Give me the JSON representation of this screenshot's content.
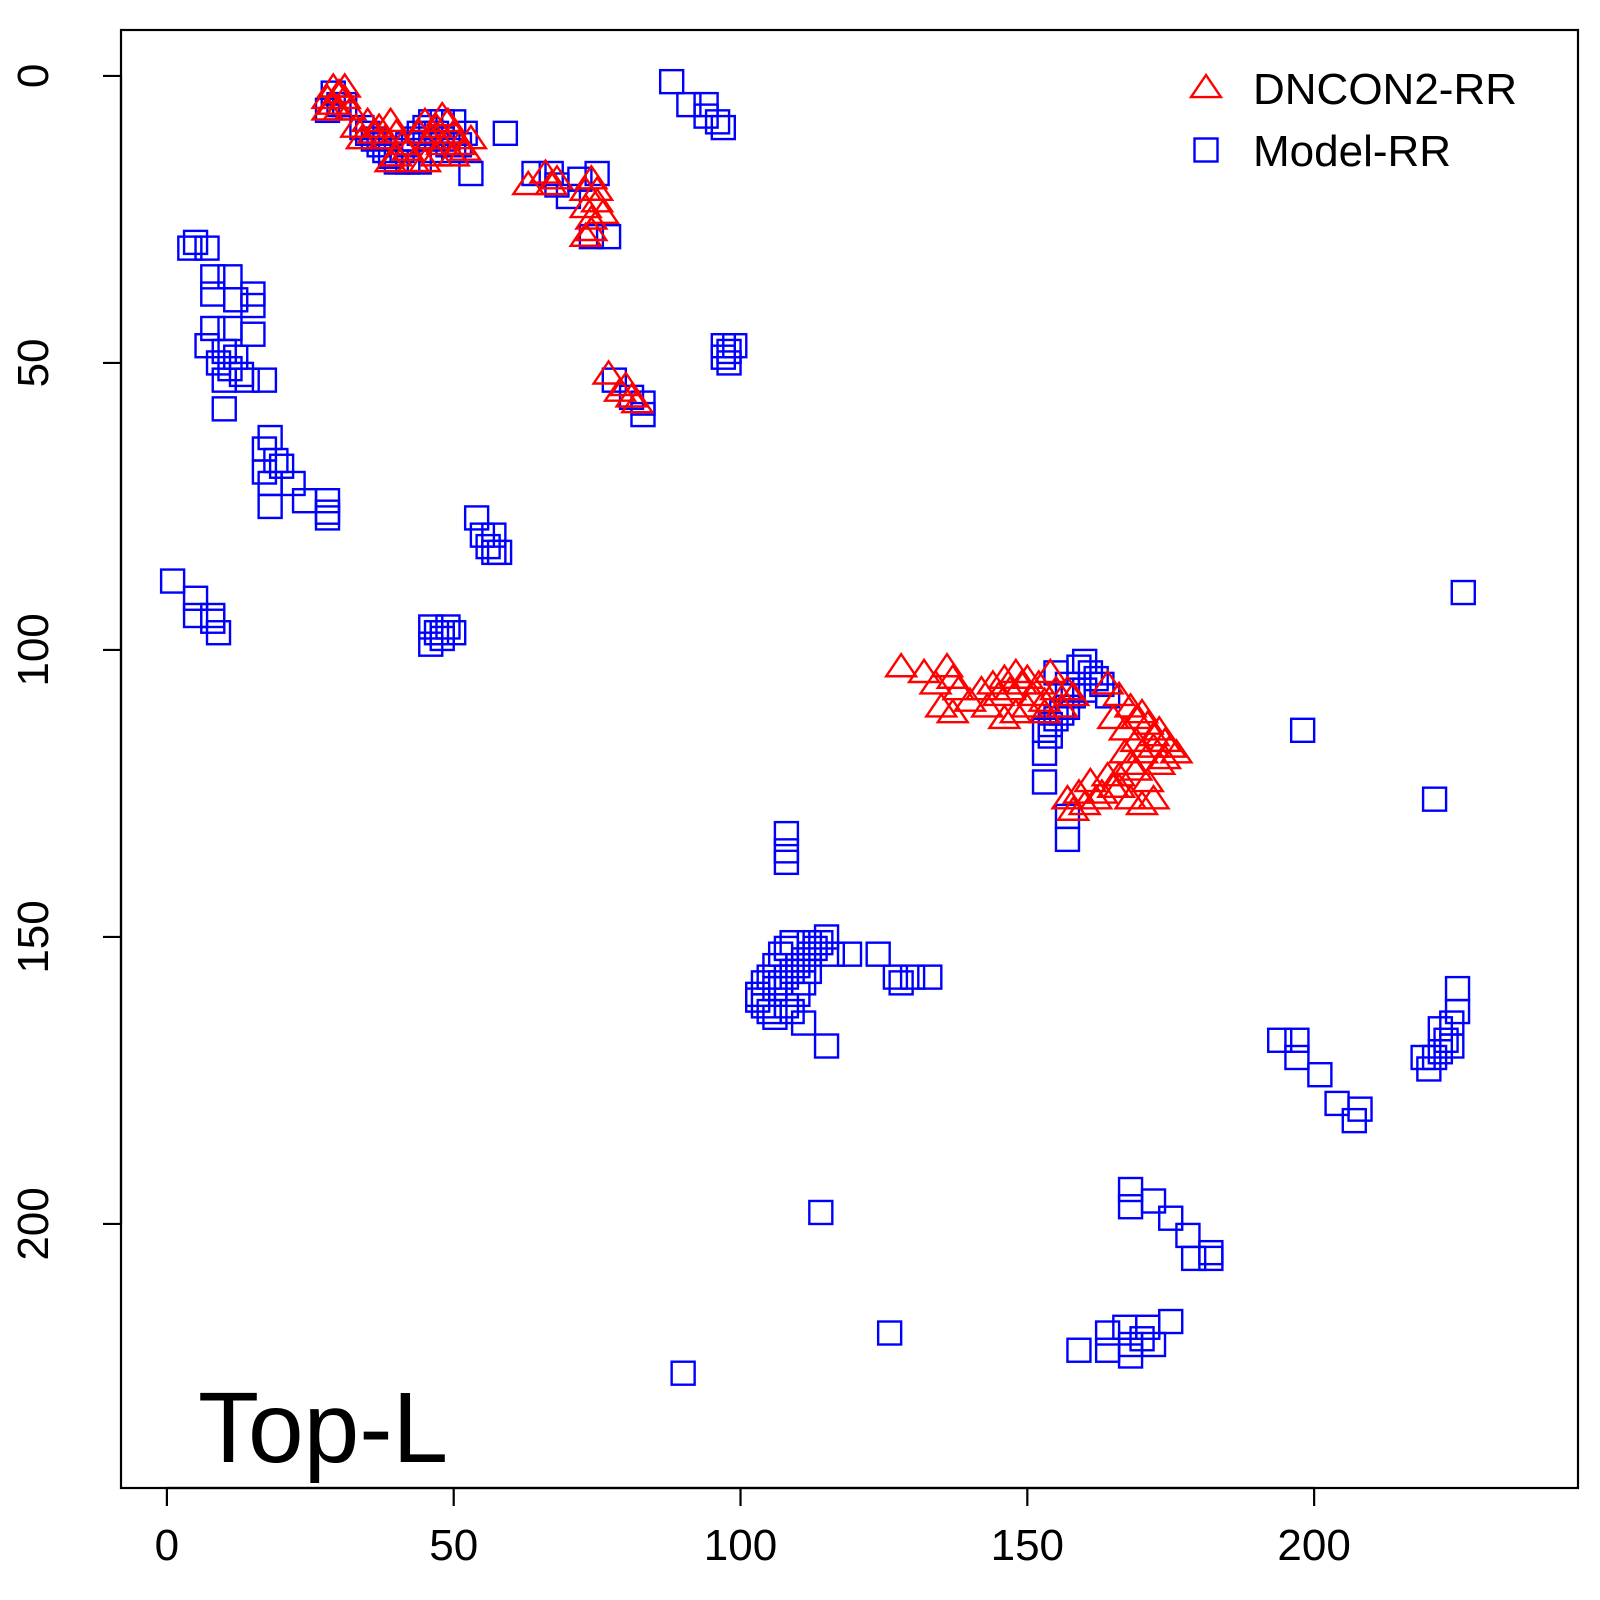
{
  "chart_data": {
    "type": "scatter",
    "title": "",
    "xlabel": "",
    "ylabel": "",
    "xlim": [
      -8,
      246
    ],
    "ylim": [
      246,
      -8
    ],
    "y_reversed": true,
    "grid": false,
    "legend_position": "top-right",
    "annotation": "Top-L",
    "x_ticks": [
      0,
      50,
      100,
      150,
      200
    ],
    "y_ticks": [
      0,
      50,
      100,
      150,
      200
    ],
    "series": [
      {
        "name": "DNCON2-RR",
        "marker": "triangle",
        "color": "#ff0000",
        "points": [
          [
            28,
            4
          ],
          [
            29,
            2
          ],
          [
            30,
            3
          ],
          [
            29,
            5
          ],
          [
            31,
            4
          ],
          [
            28,
            6
          ],
          [
            30,
            6
          ],
          [
            32,
            6
          ],
          [
            31,
            2
          ],
          [
            33,
            9
          ],
          [
            34,
            11
          ],
          [
            35,
            8
          ],
          [
            36,
            10
          ],
          [
            37,
            9
          ],
          [
            38,
            11
          ],
          [
            39,
            8
          ],
          [
            40,
            10
          ],
          [
            41,
            12
          ],
          [
            40,
            14
          ],
          [
            39,
            15
          ],
          [
            42,
            13
          ],
          [
            43,
            15
          ],
          [
            44,
            10
          ],
          [
            45,
            8
          ],
          [
            46,
            11
          ],
          [
            47,
            9
          ],
          [
            48,
            12
          ],
          [
            49,
            8
          ],
          [
            50,
            10
          ],
          [
            51,
            12
          ],
          [
            52,
            13
          ],
          [
            47,
            14
          ],
          [
            45,
            15
          ],
          [
            53,
            11
          ],
          [
            50,
            14
          ],
          [
            48,
            7
          ],
          [
            63,
            19
          ],
          [
            66,
            17
          ],
          [
            67,
            19
          ],
          [
            68,
            18
          ],
          [
            73,
            20
          ],
          [
            74,
            18
          ],
          [
            75,
            20
          ],
          [
            73,
            23
          ],
          [
            74,
            25
          ],
          [
            75,
            22
          ],
          [
            76,
            24
          ],
          [
            74,
            27
          ],
          [
            73,
            28
          ],
          [
            77,
            52
          ],
          [
            79,
            55
          ],
          [
            80,
            54
          ],
          [
            81,
            56
          ],
          [
            82,
            57
          ],
          [
            128,
            103
          ],
          [
            132,
            104
          ],
          [
            134,
            106
          ],
          [
            136,
            103
          ],
          [
            137,
            105
          ],
          [
            138,
            107
          ],
          [
            135,
            110
          ],
          [
            137,
            111
          ],
          [
            140,
            109
          ],
          [
            142,
            107
          ],
          [
            143,
            110
          ],
          [
            144,
            106
          ],
          [
            146,
            105
          ],
          [
            145,
            108
          ],
          [
            147,
            107
          ],
          [
            148,
            104
          ],
          [
            149,
            106
          ],
          [
            150,
            105
          ],
          [
            151,
            108
          ],
          [
            152,
            106
          ],
          [
            153,
            109
          ],
          [
            150,
            110
          ],
          [
            148,
            111
          ],
          [
            146,
            112
          ],
          [
            155,
            107
          ],
          [
            154,
            104
          ],
          [
            157,
            107
          ],
          [
            156,
            110
          ],
          [
            158,
            108
          ],
          [
            153,
            111
          ],
          [
            164,
            106
          ],
          [
            166,
            108
          ],
          [
            165,
            112
          ],
          [
            167,
            114
          ],
          [
            168,
            110
          ],
          [
            169,
            112
          ],
          [
            170,
            111
          ],
          [
            171,
            113
          ],
          [
            172,
            115
          ],
          [
            173,
            114
          ],
          [
            174,
            116
          ],
          [
            175,
            117
          ],
          [
            176,
            118
          ],
          [
            169,
            116
          ],
          [
            167,
            118
          ],
          [
            168,
            120
          ],
          [
            166,
            122
          ],
          [
            165,
            124
          ],
          [
            163,
            125
          ],
          [
            162,
            126
          ],
          [
            160,
            127
          ],
          [
            158,
            128
          ],
          [
            157,
            126
          ],
          [
            159,
            125
          ],
          [
            161,
            123
          ],
          [
            164,
            122
          ],
          [
            166,
            124
          ],
          [
            168,
            126
          ],
          [
            170,
            127
          ],
          [
            172,
            126
          ],
          [
            171,
            123
          ],
          [
            173,
            120
          ],
          [
            170,
            118
          ],
          [
            172,
            117
          ],
          [
            174,
            119
          ],
          [
            169,
            121
          ]
        ]
      },
      {
        "name": "Model-RR",
        "marker": "square",
        "color": "#0000ff",
        "points": [
          [
            29,
            3
          ],
          [
            30,
            5
          ],
          [
            28,
            6
          ],
          [
            31,
            5
          ],
          [
            34,
            9
          ],
          [
            35,
            10
          ],
          [
            36,
            11
          ],
          [
            37,
            12
          ],
          [
            38,
            13
          ],
          [
            39,
            14
          ],
          [
            40,
            15
          ],
          [
            41,
            13
          ],
          [
            42,
            12
          ],
          [
            43,
            11
          ],
          [
            44,
            10
          ],
          [
            45,
            9
          ],
          [
            46,
            8
          ],
          [
            47,
            10
          ],
          [
            48,
            11
          ],
          [
            49,
            12
          ],
          [
            50,
            13
          ],
          [
            51,
            12
          ],
          [
            52,
            10
          ],
          [
            53,
            17
          ],
          [
            46,
            13
          ],
          [
            44,
            15
          ],
          [
            42,
            15
          ],
          [
            48,
            8
          ],
          [
            50,
            8
          ],
          [
            59,
            10
          ],
          [
            88,
            1
          ],
          [
            91,
            5
          ],
          [
            94,
            5
          ],
          [
            94,
            7
          ],
          [
            96,
            8
          ],
          [
            97,
            9
          ],
          [
            64,
            17
          ],
          [
            67,
            17
          ],
          [
            68,
            19
          ],
          [
            70,
            21
          ],
          [
            72,
            18
          ],
          [
            75,
            17
          ],
          [
            74,
            28
          ],
          [
            77,
            28
          ],
          [
            5,
            29
          ],
          [
            7,
            30
          ],
          [
            4,
            30
          ],
          [
            8,
            35
          ],
          [
            11,
            35
          ],
          [
            8,
            38
          ],
          [
            12,
            39
          ],
          [
            15,
            38
          ],
          [
            15,
            40
          ],
          [
            8,
            44
          ],
          [
            11,
            44
          ],
          [
            15,
            45
          ],
          [
            7,
            47
          ],
          [
            10,
            48
          ],
          [
            12,
            49
          ],
          [
            9,
            50
          ],
          [
            11,
            51
          ],
          [
            13,
            52
          ],
          [
            14,
            53
          ],
          [
            10,
            53
          ],
          [
            17,
            53
          ],
          [
            10,
            58
          ],
          [
            18,
            63
          ],
          [
            17,
            65
          ],
          [
            19,
            67
          ],
          [
            17,
            69
          ],
          [
            20,
            68
          ],
          [
            18,
            71
          ],
          [
            22,
            71
          ],
          [
            18,
            75
          ],
          [
            24,
            74
          ],
          [
            28,
            74
          ],
          [
            28,
            76
          ],
          [
            28,
            77
          ],
          [
            54,
            77
          ],
          [
            55,
            80
          ],
          [
            57,
            80
          ],
          [
            56,
            82
          ],
          [
            57,
            83
          ],
          [
            58,
            83
          ],
          [
            1,
            88
          ],
          [
            5,
            91
          ],
          [
            5,
            94
          ],
          [
            8,
            94
          ],
          [
            8,
            95
          ],
          [
            9,
            97
          ],
          [
            46,
            96
          ],
          [
            47,
            97
          ],
          [
            48,
            98
          ],
          [
            46,
            99
          ],
          [
            48,
            97
          ],
          [
            49,
            96
          ],
          [
            50,
            97
          ],
          [
            97,
            47
          ],
          [
            98,
            48
          ],
          [
            99,
            47
          ],
          [
            97,
            49
          ],
          [
            98,
            50
          ],
          [
            78,
            53
          ],
          [
            81,
            56
          ],
          [
            83,
            57
          ],
          [
            83,
            59
          ],
          [
            155,
            104
          ],
          [
            157,
            106
          ],
          [
            159,
            103
          ],
          [
            160,
            102
          ],
          [
            161,
            104
          ],
          [
            162,
            105
          ],
          [
            163,
            106
          ],
          [
            160,
            107
          ],
          [
            158,
            108
          ],
          [
            157,
            110
          ],
          [
            156,
            111
          ],
          [
            155,
            112
          ],
          [
            154,
            113
          ],
          [
            153,
            114
          ],
          [
            154,
            115
          ],
          [
            153,
            118
          ],
          [
            153,
            123
          ],
          [
            157,
            129
          ],
          [
            157,
            133
          ],
          [
            164,
            108
          ],
          [
            108,
            132
          ],
          [
            108,
            135
          ],
          [
            108,
            137
          ],
          [
            103,
            160
          ],
          [
            104,
            162
          ],
          [
            105,
            163
          ],
          [
            106,
            164
          ],
          [
            107,
            158
          ],
          [
            108,
            157
          ],
          [
            109,
            156
          ],
          [
            110,
            155
          ],
          [
            111,
            154
          ],
          [
            112,
            153
          ],
          [
            113,
            152
          ],
          [
            114,
            151
          ],
          [
            115,
            150
          ],
          [
            116,
            153
          ],
          [
            119,
            153
          ],
          [
            124,
            153
          ],
          [
            127,
            157
          ],
          [
            128,
            158
          ],
          [
            130,
            157
          ],
          [
            133,
            157
          ],
          [
            106,
            155
          ],
          [
            107,
            153
          ],
          [
            108,
            152
          ],
          [
            109,
            151
          ],
          [
            105,
            157
          ],
          [
            106,
            159
          ],
          [
            104,
            158
          ],
          [
            103,
            161
          ],
          [
            111,
            165
          ],
          [
            115,
            169
          ],
          [
            110,
            160
          ],
          [
            111,
            158
          ],
          [
            112,
            156
          ],
          [
            108,
            162
          ],
          [
            109,
            163
          ],
          [
            112,
            151
          ],
          [
            198,
            114
          ],
          [
            221,
            126
          ],
          [
            226,
            90
          ],
          [
            194,
            168
          ],
          [
            197,
            168
          ],
          [
            197,
            171
          ],
          [
            201,
            174
          ],
          [
            204,
            179
          ],
          [
            207,
            182
          ],
          [
            208,
            180
          ],
          [
            219,
            171
          ],
          [
            220,
            173
          ],
          [
            221,
            171
          ],
          [
            222,
            170
          ],
          [
            222,
            166
          ],
          [
            223,
            168
          ],
          [
            224,
            169
          ],
          [
            224,
            165
          ],
          [
            225,
            163
          ],
          [
            225,
            159
          ],
          [
            114,
            198
          ],
          [
            90,
            226
          ],
          [
            126,
            219
          ],
          [
            168,
            194
          ],
          [
            168,
            197
          ],
          [
            172,
            196
          ],
          [
            175,
            199
          ],
          [
            178,
            202
          ],
          [
            179,
            206
          ],
          [
            182,
            206
          ],
          [
            182,
            205
          ],
          [
            159,
            222
          ],
          [
            164,
            222
          ],
          [
            164,
            219
          ],
          [
            167,
            218
          ],
          [
            168,
            221
          ],
          [
            168,
            223
          ],
          [
            170,
            220
          ],
          [
            171,
            218
          ],
          [
            172,
            221
          ],
          [
            175,
            217
          ]
        ]
      }
    ]
  }
}
